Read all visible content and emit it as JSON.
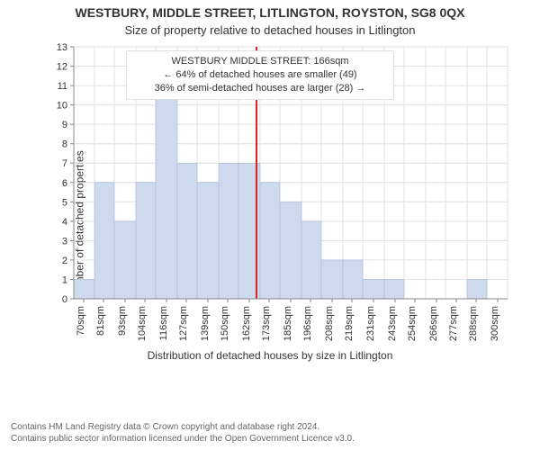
{
  "title_line1": "WESTBURY, MIDDLE STREET, LITLINGTON, ROYSTON, SG8 0QX",
  "title_line2": "Size of property relative to detached houses in Litlington",
  "ylabel": "Number of detached properties",
  "xlabel": "Distribution of detached houses by size in Litlington",
  "footer_line1": "Contains HM Land Registry data © Crown copyright and database right 2024.",
  "footer_line2": "Contains public sector information licensed under the Open Government Licence v3.0.",
  "annotation": {
    "line1": "WESTBURY MIDDLE STREET: 166sqm",
    "line2": "← 64% of detached houses are smaller (49)",
    "line3": "36% of semi-detached houses are larger (28) →"
  },
  "chart": {
    "type": "histogram",
    "background_color": "#ffffff",
    "grid_color": "#e0e0e0",
    "axis_color": "#888888",
    "bar_fill": "#cdd9ec",
    "bar_stroke": "#9fb2d6",
    "marker_color": "#e02020",
    "bar_width_ratio": 1.0,
    "x_tick_labels": [
      "70sqm",
      "81sqm",
      "93sqm",
      "104sqm",
      "116sqm",
      "127sqm",
      "139sqm",
      "150sqm",
      "162sqm",
      "173sqm",
      "185sqm",
      "196sqm",
      "208sqm",
      "219sqm",
      "231sqm",
      "243sqm",
      "254sqm",
      "266sqm",
      "277sqm",
      "288sqm",
      "300sqm"
    ],
    "x_tick_centers": [
      70,
      81,
      93,
      104,
      116,
      127,
      139,
      150,
      162,
      173,
      185,
      196,
      208,
      219,
      231,
      243,
      254,
      266,
      277,
      288,
      300
    ],
    "bin_edges": [
      64.5,
      76,
      87,
      99,
      110,
      122,
      133,
      145,
      156,
      168,
      179,
      191,
      202,
      214,
      225,
      237,
      248,
      260,
      271,
      283,
      294,
      305.5
    ],
    "bin_values": [
      1,
      6,
      4,
      6,
      11,
      7,
      6,
      7,
      7,
      6,
      5,
      4,
      2,
      2,
      1,
      1,
      0,
      0,
      0,
      1,
      0
    ],
    "xlim": [
      64.5,
      305.5
    ],
    "ylim": [
      0,
      13
    ],
    "ytick_step": 1,
    "marker_x": 166,
    "x_tick_fontsize": 11,
    "y_tick_fontsize": 11,
    "title_fontsize": 14,
    "subtitle_fontsize": 13,
    "label_fontsize": 12,
    "annotation_fontsize": 11
  }
}
